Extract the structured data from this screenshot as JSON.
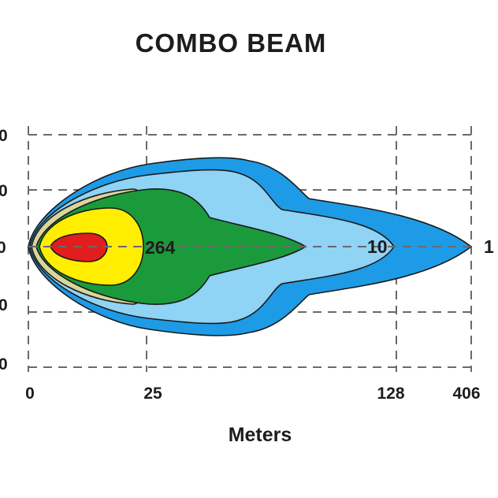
{
  "title": "COMBO  BEAM",
  "x_axis": {
    "label": "Meters",
    "ticks": [
      "0",
      "25",
      "128",
      "406"
    ]
  },
  "y_axis": {
    "ticks": [
      "0",
      "0",
      "0",
      "0",
      "0"
    ]
  },
  "lux_labels": {
    "inner": "264",
    "middle": "10",
    "edge": "1"
  },
  "zone_colors": {
    "outer": "#1e9be6",
    "light": "#8fd3f5",
    "tan": "#d8d69a",
    "green": "#1b9a3c",
    "yellow": "#ffee00",
    "red": "#e11d1d"
  }
}
